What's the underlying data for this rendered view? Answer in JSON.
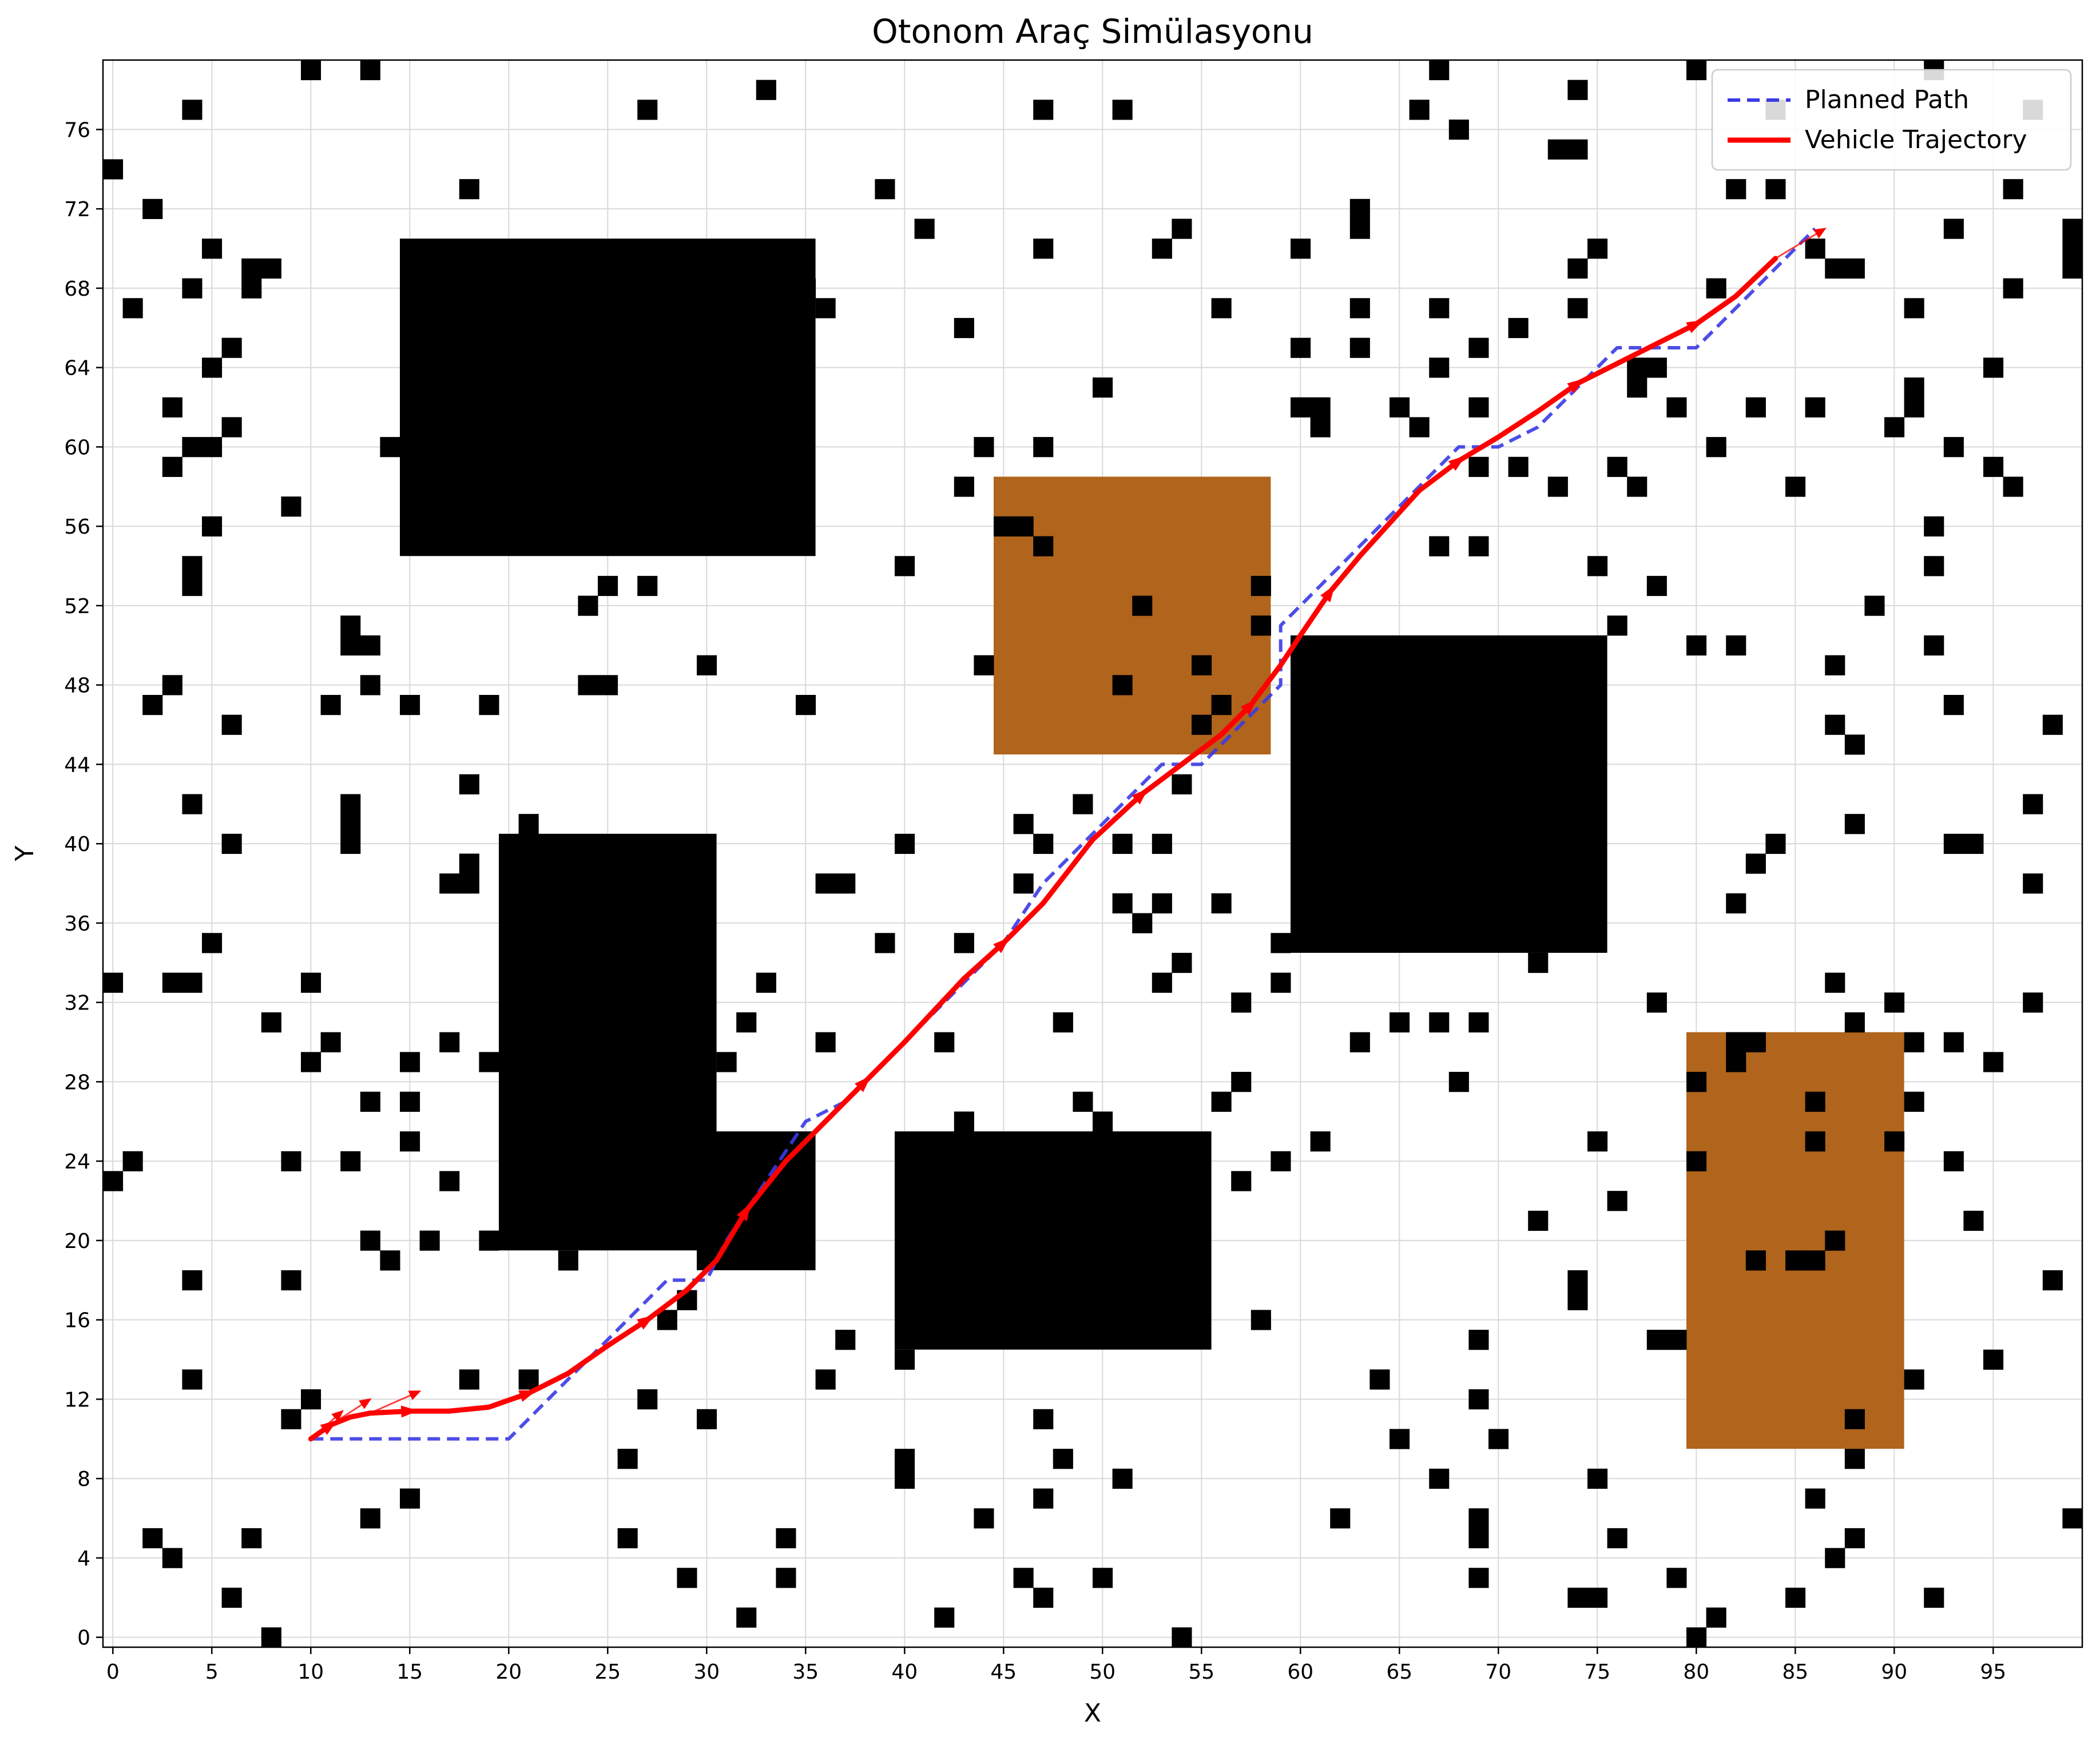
{
  "chart_data": {
    "type": "scatter",
    "title": "Otonom Araç Simülasyonu",
    "xlabel": "X",
    "ylabel": "Y",
    "xlim": [
      -0.5,
      99.5
    ],
    "ylim": [
      -0.5,
      79.5
    ],
    "xticks": [
      0,
      5,
      10,
      15,
      20,
      25,
      30,
      35,
      40,
      45,
      50,
      55,
      60,
      65,
      70,
      75,
      80,
      85,
      90,
      95
    ],
    "yticks": [
      0,
      4,
      8,
      12,
      16,
      20,
      24,
      28,
      32,
      36,
      40,
      44,
      48,
      52,
      56,
      60,
      64,
      68,
      72,
      76
    ],
    "grid": true,
    "legend_position": "top-right",
    "colors": {
      "obstacle": "#000000",
      "terrain": "#b0641c",
      "planned": "#3a3ae6",
      "trajectory": "#ff0000",
      "grid": "#d9d9d9"
    },
    "legend": [
      {
        "label": "Planned Path",
        "style": "dashed",
        "color": "#3a3ae6"
      },
      {
        "label": "Vehicle Trajectory",
        "style": "solid",
        "color": "#ff0000"
      }
    ],
    "terrain_zones": [
      {
        "x0": 45,
        "x1": 58,
        "y0": 45,
        "y1": 58
      },
      {
        "x0": 80,
        "x1": 90,
        "y0": 10,
        "y1": 30
      }
    ],
    "obstacle_blocks": [
      {
        "x0": 15,
        "x1": 35,
        "y0": 55,
        "y1": 70
      },
      {
        "x0": 20,
        "x1": 30,
        "y0": 20,
        "y1": 40
      },
      {
        "x0": 30,
        "x1": 35,
        "y0": 19,
        "y1": 25
      },
      {
        "x0": 40,
        "x1": 55,
        "y0": 15,
        "y1": 25
      },
      {
        "x0": 60,
        "x1": 75,
        "y0": 35,
        "y1": 50
      }
    ],
    "obstacle_cells": [
      [
        10,
        79
      ],
      [
        13,
        79
      ],
      [
        67,
        79
      ],
      [
        80,
        79
      ],
      [
        92,
        79
      ],
      [
        33,
        78
      ],
      [
        74,
        78
      ],
      [
        4,
        77
      ],
      [
        27,
        77
      ],
      [
        47,
        77
      ],
      [
        51,
        77
      ],
      [
        66,
        77
      ],
      [
        84,
        77
      ],
      [
        97,
        77
      ],
      [
        68,
        76
      ],
      [
        73,
        75
      ],
      [
        74,
        75
      ],
      [
        0,
        74
      ],
      [
        18,
        73
      ],
      [
        39,
        73
      ],
      [
        82,
        73
      ],
      [
        84,
        73
      ],
      [
        96,
        73
      ],
      [
        2,
        72
      ],
      [
        63,
        72
      ],
      [
        41,
        71
      ],
      [
        54,
        71
      ],
      [
        63,
        71
      ],
      [
        93,
        71
      ],
      [
        99,
        71
      ],
      [
        5,
        70
      ],
      [
        47,
        70
      ],
      [
        53,
        70
      ],
      [
        60,
        70
      ],
      [
        75,
        70
      ],
      [
        86,
        70
      ],
      [
        99,
        70
      ],
      [
        7,
        69
      ],
      [
        8,
        69
      ],
      [
        74,
        69
      ],
      [
        87,
        69
      ],
      [
        88,
        69
      ],
      [
        99,
        69
      ],
      [
        4,
        68
      ],
      [
        7,
        68
      ],
      [
        35,
        68
      ],
      [
        81,
        68
      ],
      [
        96,
        68
      ],
      [
        1,
        67
      ],
      [
        36,
        67
      ],
      [
        56,
        67
      ],
      [
        63,
        67
      ],
      [
        67,
        67
      ],
      [
        74,
        67
      ],
      [
        91,
        67
      ],
      [
        43,
        66
      ],
      [
        71,
        66
      ],
      [
        6,
        65
      ],
      [
        60,
        65
      ],
      [
        63,
        65
      ],
      [
        69,
        65
      ],
      [
        5,
        64
      ],
      [
        67,
        64
      ],
      [
        77,
        64
      ],
      [
        78,
        64
      ],
      [
        95,
        64
      ],
      [
        50,
        63
      ],
      [
        77,
        63
      ],
      [
        91,
        63
      ],
      [
        3,
        62
      ],
      [
        60,
        62
      ],
      [
        61,
        62
      ],
      [
        65,
        62
      ],
      [
        69,
        62
      ],
      [
        79,
        62
      ],
      [
        83,
        62
      ],
      [
        86,
        62
      ],
      [
        91,
        62
      ],
      [
        6,
        61
      ],
      [
        61,
        61
      ],
      [
        66,
        61
      ],
      [
        90,
        61
      ],
      [
        4,
        60
      ],
      [
        5,
        60
      ],
      [
        14,
        60
      ],
      [
        44,
        60
      ],
      [
        47,
        60
      ],
      [
        81,
        60
      ],
      [
        93,
        60
      ],
      [
        3,
        59
      ],
      [
        69,
        59
      ],
      [
        71,
        59
      ],
      [
        76,
        59
      ],
      [
        95,
        59
      ],
      [
        43,
        58
      ],
      [
        73,
        58
      ],
      [
        77,
        58
      ],
      [
        85,
        58
      ],
      [
        96,
        58
      ],
      [
        9,
        57
      ],
      [
        5,
        56
      ],
      [
        45,
        56
      ],
      [
        46,
        56
      ],
      [
        92,
        56
      ],
      [
        47,
        55
      ],
      [
        67,
        55
      ],
      [
        69,
        55
      ],
      [
        4,
        54
      ],
      [
        40,
        54
      ],
      [
        75,
        54
      ],
      [
        92,
        54
      ],
      [
        4,
        53
      ],
      [
        25,
        53
      ],
      [
        27,
        53
      ],
      [
        58,
        53
      ],
      [
        78,
        53
      ],
      [
        24,
        52
      ],
      [
        52,
        52
      ],
      [
        89,
        52
      ],
      [
        12,
        51
      ],
      [
        58,
        51
      ],
      [
        76,
        51
      ],
      [
        12,
        50
      ],
      [
        13,
        50
      ],
      [
        80,
        50
      ],
      [
        82,
        50
      ],
      [
        92,
        50
      ],
      [
        30,
        49
      ],
      [
        44,
        49
      ],
      [
        55,
        49
      ],
      [
        87,
        49
      ],
      [
        3,
        48
      ],
      [
        13,
        48
      ],
      [
        24,
        48
      ],
      [
        25,
        48
      ],
      [
        51,
        48
      ],
      [
        2,
        47
      ],
      [
        11,
        47
      ],
      [
        15,
        47
      ],
      [
        19,
        47
      ],
      [
        35,
        47
      ],
      [
        56,
        47
      ],
      [
        93,
        47
      ],
      [
        6,
        46
      ],
      [
        55,
        46
      ],
      [
        87,
        46
      ],
      [
        98,
        46
      ],
      [
        88,
        45
      ],
      [
        18,
        43
      ],
      [
        54,
        43
      ],
      [
        4,
        42
      ],
      [
        12,
        42
      ],
      [
        49,
        42
      ],
      [
        97,
        42
      ],
      [
        12,
        41
      ],
      [
        21,
        41
      ],
      [
        46,
        41
      ],
      [
        88,
        41
      ],
      [
        6,
        40
      ],
      [
        12,
        40
      ],
      [
        40,
        40
      ],
      [
        47,
        40
      ],
      [
        51,
        40
      ],
      [
        53,
        40
      ],
      [
        84,
        40
      ],
      [
        93,
        40
      ],
      [
        94,
        40
      ],
      [
        17,
        38
      ],
      [
        18,
        38
      ],
      [
        36,
        38
      ],
      [
        37,
        38
      ],
      [
        46,
        38
      ],
      [
        83,
        39
      ],
      [
        18,
        39
      ],
      [
        97,
        38
      ],
      [
        51,
        37
      ],
      [
        53,
        37
      ],
      [
        56,
        37
      ],
      [
        82,
        37
      ],
      [
        52,
        36
      ],
      [
        5,
        35
      ],
      [
        39,
        35
      ],
      [
        43,
        35
      ],
      [
        59,
        35
      ],
      [
        54,
        34
      ],
      [
        72,
        34
      ],
      [
        0,
        33
      ],
      [
        3,
        33
      ],
      [
        4,
        33
      ],
      [
        10,
        33
      ],
      [
        33,
        33
      ],
      [
        53,
        33
      ],
      [
        59,
        33
      ],
      [
        87,
        33
      ],
      [
        57,
        32
      ],
      [
        78,
        32
      ],
      [
        90,
        32
      ],
      [
        97,
        32
      ],
      [
        8,
        31
      ],
      [
        32,
        31
      ],
      [
        48,
        31
      ],
      [
        65,
        31
      ],
      [
        67,
        31
      ],
      [
        69,
        31
      ],
      [
        88,
        31
      ],
      [
        11,
        30
      ],
      [
        17,
        30
      ],
      [
        36,
        30
      ],
      [
        42,
        30
      ],
      [
        63,
        30
      ],
      [
        82,
        30
      ],
      [
        83,
        30
      ],
      [
        91,
        30
      ],
      [
        93,
        30
      ],
      [
        10,
        29
      ],
      [
        15,
        29
      ],
      [
        19,
        29
      ],
      [
        31,
        29
      ],
      [
        82,
        29
      ],
      [
        95,
        29
      ],
      [
        57,
        28
      ],
      [
        68,
        28
      ],
      [
        80,
        28
      ],
      [
        13,
        27
      ],
      [
        15,
        27
      ],
      [
        49,
        27
      ],
      [
        56,
        27
      ],
      [
        86,
        27
      ],
      [
        91,
        27
      ],
      [
        43,
        26
      ],
      [
        50,
        26
      ],
      [
        15,
        25
      ],
      [
        61,
        25
      ],
      [
        75,
        25
      ],
      [
        86,
        25
      ],
      [
        90,
        25
      ],
      [
        1,
        24
      ],
      [
        9,
        24
      ],
      [
        12,
        24
      ],
      [
        59,
        24
      ],
      [
        80,
        24
      ],
      [
        93,
        24
      ],
      [
        0,
        23
      ],
      [
        17,
        23
      ],
      [
        57,
        23
      ],
      [
        76,
        22
      ],
      [
        72,
        21
      ],
      [
        94,
        21
      ],
      [
        13,
        20
      ],
      [
        16,
        20
      ],
      [
        19,
        20
      ],
      [
        87,
        20
      ],
      [
        14,
        19
      ],
      [
        23,
        19
      ],
      [
        83,
        19
      ],
      [
        85,
        19
      ],
      [
        86,
        19
      ],
      [
        4,
        18
      ],
      [
        9,
        18
      ],
      [
        98,
        18
      ],
      [
        74,
        18
      ],
      [
        74,
        17
      ],
      [
        29,
        17
      ],
      [
        28,
        16
      ],
      [
        58,
        16
      ],
      [
        37,
        15
      ],
      [
        69,
        15
      ],
      [
        78,
        15
      ],
      [
        79,
        15
      ],
      [
        40,
        14
      ],
      [
        95,
        14
      ],
      [
        4,
        13
      ],
      [
        18,
        13
      ],
      [
        21,
        13
      ],
      [
        36,
        13
      ],
      [
        64,
        13
      ],
      [
        91,
        13
      ],
      [
        10,
        12
      ],
      [
        27,
        12
      ],
      [
        69,
        12
      ],
      [
        9,
        11
      ],
      [
        30,
        11
      ],
      [
        47,
        11
      ],
      [
        88,
        11
      ],
      [
        65,
        10
      ],
      [
        70,
        10
      ],
      [
        26,
        9
      ],
      [
        40,
        9
      ],
      [
        48,
        9
      ],
      [
        88,
        9
      ],
      [
        40,
        8
      ],
      [
        51,
        8
      ],
      [
        67,
        8
      ],
      [
        75,
        8
      ],
      [
        47,
        7
      ],
      [
        86,
        7
      ],
      [
        13,
        6
      ],
      [
        15,
        7
      ],
      [
        44,
        6
      ],
      [
        62,
        6
      ],
      [
        69,
        6
      ],
      [
        99,
        6
      ],
      [
        2,
        5
      ],
      [
        7,
        5
      ],
      [
        26,
        5
      ],
      [
        34,
        5
      ],
      [
        69,
        5
      ],
      [
        76,
        5
      ],
      [
        88,
        5
      ],
      [
        3,
        4
      ],
      [
        87,
        4
      ],
      [
        29,
        3
      ],
      [
        34,
        3
      ],
      [
        46,
        3
      ],
      [
        50,
        3
      ],
      [
        69,
        3
      ],
      [
        79,
        3
      ],
      [
        6,
        2
      ],
      [
        47,
        2
      ],
      [
        74,
        2
      ],
      [
        75,
        2
      ],
      [
        85,
        2
      ],
      [
        92,
        2
      ],
      [
        32,
        1
      ],
      [
        42,
        1
      ],
      [
        81,
        1
      ],
      [
        8,
        0
      ],
      [
        54,
        0
      ],
      [
        80,
        0
      ]
    ],
    "series": [
      {
        "name": "Planned Path",
        "points": [
          [
            10,
            10
          ],
          [
            20,
            10
          ],
          [
            24,
            14
          ],
          [
            26,
            16
          ],
          [
            28,
            18
          ],
          [
            30,
            18
          ],
          [
            31,
            20
          ],
          [
            33,
            23
          ],
          [
            35,
            26
          ],
          [
            37,
            27
          ],
          [
            40,
            30
          ],
          [
            43,
            33
          ],
          [
            45,
            35
          ],
          [
            47,
            38
          ],
          [
            49,
            40
          ],
          [
            51,
            42
          ],
          [
            53,
            44
          ],
          [
            55,
            44
          ],
          [
            57,
            46
          ],
          [
            59,
            48
          ],
          [
            59,
            51
          ],
          [
            61,
            53
          ],
          [
            63,
            55
          ],
          [
            66,
            58
          ],
          [
            68,
            60
          ],
          [
            70,
            60
          ],
          [
            72,
            61
          ],
          [
            74,
            63
          ],
          [
            76,
            65
          ],
          [
            80,
            65
          ],
          [
            82,
            67
          ],
          [
            86,
            71
          ]
        ]
      },
      {
        "name": "Vehicle Trajectory",
        "points": [
          [
            10,
            10
          ],
          [
            11,
            10.7
          ],
          [
            12,
            11.1
          ],
          [
            13,
            11.3
          ],
          [
            15,
            11.4
          ],
          [
            17,
            11.4
          ],
          [
            19,
            11.6
          ],
          [
            21,
            12.3
          ],
          [
            23,
            13.3
          ],
          [
            25,
            14.7
          ],
          [
            27,
            16
          ],
          [
            29,
            17.5
          ],
          [
            30.5,
            19
          ],
          [
            32,
            21.5
          ],
          [
            34,
            24
          ],
          [
            36.5,
            26.5
          ],
          [
            38,
            28
          ],
          [
            40,
            30
          ],
          [
            43,
            33.2
          ],
          [
            45,
            35
          ],
          [
            47,
            37
          ],
          [
            49.5,
            40.2
          ],
          [
            52,
            42.5
          ],
          [
            54,
            44
          ],
          [
            56,
            45.5
          ],
          [
            57.5,
            47
          ],
          [
            59,
            49
          ],
          [
            60,
            50.5
          ],
          [
            61.5,
            52.7
          ],
          [
            63,
            54.5
          ],
          [
            66,
            57.8
          ],
          [
            68,
            59.3
          ],
          [
            70,
            60.5
          ],
          [
            72,
            61.8
          ],
          [
            74,
            63.2
          ],
          [
            76,
            64.2
          ],
          [
            78,
            65.2
          ],
          [
            80,
            66.2
          ],
          [
            82,
            67.6
          ],
          [
            84,
            69.5
          ]
        ]
      }
    ]
  }
}
